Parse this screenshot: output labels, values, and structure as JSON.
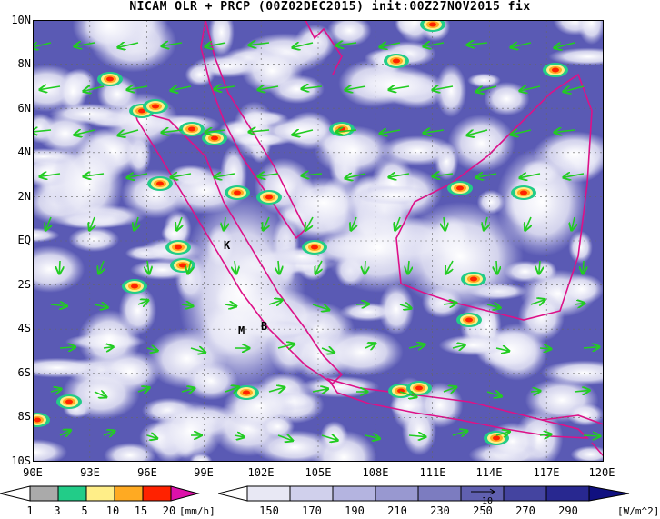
{
  "title": "NICAM OLR + PRCP (00Z02DEC2015) init:00Z27NOV2015 fix",
  "lat_labels": [
    "10N",
    "8N",
    "6N",
    "4N",
    "2N",
    "EQ",
    "2S",
    "4S",
    "6S",
    "8S",
    "10S"
  ],
  "lon_labels": [
    "90E",
    "93E",
    "96E",
    "99E",
    "102E",
    "105E",
    "108E",
    "111E",
    "114E",
    "117E",
    "120E"
  ],
  "place_labels": [
    "K",
    "M",
    "B"
  ],
  "prcp_colorbar": {
    "unit": "[mm/h]",
    "ticks": [
      "1",
      "3",
      "5",
      "10",
      "15",
      "20"
    ],
    "colors": [
      "#aaaaaa",
      "#22cc88",
      "#ffee88",
      "#ffaa22",
      "#ff2200",
      "#dd11aa"
    ]
  },
  "olr_colorbar": {
    "unit": "[W/m^2]",
    "ticks": [
      "150",
      "170",
      "190",
      "210",
      "230",
      "250",
      "270",
      "290"
    ],
    "colors": [
      "#ffffff",
      "#e8e8f4",
      "#d0d0ec",
      "#b4b4e0",
      "#9898d0",
      "#7c7cc0",
      "#6060b0",
      "#4444a0",
      "#282890",
      "#101080"
    ],
    "vector_label": "10"
  },
  "colors": {
    "coast": "#dd1188",
    "wind": "#22cc22",
    "olr_bg": "#5a5ab4"
  }
}
